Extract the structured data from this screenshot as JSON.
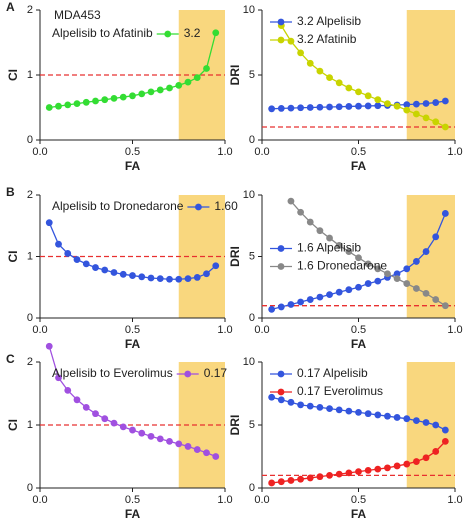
{
  "chart_data": [
    {
      "type": "line",
      "panel_label": "A",
      "title": "MDA453",
      "annotation": "Alpelisib to Afatinib",
      "xlabel": "FA",
      "ylabel": "CI",
      "x": [
        0.05,
        0.1,
        0.15,
        0.2,
        0.25,
        0.3,
        0.35,
        0.4,
        0.45,
        0.5,
        0.55,
        0.6,
        0.65,
        0.7,
        0.75,
        0.8,
        0.85,
        0.9,
        0.95
      ],
      "series": [
        {
          "name": "3.2",
          "color": "#33dd33",
          "values": [
            0.5,
            0.52,
            0.54,
            0.56,
            0.58,
            0.6,
            0.62,
            0.64,
            0.66,
            0.68,
            0.71,
            0.74,
            0.77,
            0.8,
            0.84,
            0.89,
            0.96,
            1.1,
            1.65
          ]
        }
      ],
      "xlim": [
        0,
        1
      ],
      "xticks": [
        {
          "value": 0,
          "label": "0.0"
        },
        0.5,
        {
          "value": 1,
          "label": "1.0"
        }
      ],
      "ylim": [
        0,
        2
      ],
      "yticks": [
        0,
        1,
        2
      ],
      "ref_line": 1,
      "shade": [
        0.75,
        1
      ],
      "legend_position": "upper left"
    },
    {
      "type": "line",
      "xlabel": "FA",
      "ylabel": "DRI",
      "x": [
        0.05,
        0.1,
        0.15,
        0.2,
        0.25,
        0.3,
        0.35,
        0.4,
        0.45,
        0.5,
        0.55,
        0.6,
        0.65,
        0.7,
        0.75,
        0.8,
        0.85,
        0.9,
        0.95
      ],
      "series": [
        {
          "name": "3.2 Alpelisib",
          "color": "#3355dd",
          "values": [
            2.4,
            2.43,
            2.45,
            2.48,
            2.5,
            2.52,
            2.54,
            2.56,
            2.58,
            2.6,
            2.62,
            2.64,
            2.66,
            2.69,
            2.72,
            2.76,
            2.81,
            2.88,
            3.0
          ]
        },
        {
          "name": "3.2 Afatinib",
          "color": "#c8d400",
          "values": [
            null,
            8.8,
            7.6,
            6.7,
            5.9,
            5.3,
            4.8,
            4.4,
            4.0,
            3.7,
            3.4,
            3.1,
            2.8,
            2.6,
            2.3,
            2.0,
            1.7,
            1.4,
            1.0
          ]
        }
      ],
      "xlim": [
        0,
        1
      ],
      "xticks": [
        {
          "value": 0,
          "label": "0.0"
        },
        0.5,
        {
          "value": 1,
          "label": "1.0"
        }
      ],
      "ylim": [
        0,
        10
      ],
      "yticks": [
        0,
        5,
        10
      ],
      "ref_line": 1,
      "shade": [
        0.75,
        1
      ],
      "legend_position": "upper left"
    },
    {
      "type": "line",
      "panel_label": "B",
      "annotation": "Alpelisib to Dronedarone",
      "xlabel": "FA",
      "ylabel": "CI",
      "x": [
        0.05,
        0.1,
        0.15,
        0.2,
        0.25,
        0.3,
        0.35,
        0.4,
        0.45,
        0.5,
        0.55,
        0.6,
        0.65,
        0.7,
        0.75,
        0.8,
        0.85,
        0.9,
        0.95
      ],
      "series": [
        {
          "name": "1.60",
          "color": "#3355dd",
          "values": [
            1.55,
            1.2,
            1.05,
            0.95,
            0.88,
            0.82,
            0.78,
            0.74,
            0.71,
            0.69,
            0.67,
            0.65,
            0.64,
            0.63,
            0.63,
            0.64,
            0.66,
            0.72,
            0.85
          ]
        }
      ],
      "xlim": [
        0,
        1
      ],
      "xticks": [
        {
          "value": 0,
          "label": "0.0"
        },
        0.5,
        {
          "value": 1,
          "label": "1.0"
        }
      ],
      "ylim": [
        0,
        2
      ],
      "yticks": [
        0,
        1,
        2
      ],
      "ref_line": 1,
      "shade": [
        0.75,
        1
      ],
      "legend_position": "upper left"
    },
    {
      "type": "line",
      "xlabel": "FA",
      "ylabel": "DRI",
      "x": [
        0.05,
        0.1,
        0.15,
        0.2,
        0.25,
        0.3,
        0.35,
        0.4,
        0.45,
        0.5,
        0.55,
        0.6,
        0.65,
        0.7,
        0.75,
        0.8,
        0.85,
        0.9,
        0.95
      ],
      "series": [
        {
          "name": "1.6 Alpelisib",
          "color": "#3355dd",
          "values": [
            0.7,
            0.9,
            1.1,
            1.3,
            1.5,
            1.7,
            1.9,
            2.1,
            2.3,
            2.5,
            2.8,
            3.0,
            3.3,
            3.6,
            4.0,
            4.6,
            5.4,
            6.6,
            8.5
          ]
        },
        {
          "name": "1.6 Dronedarone",
          "color": "#888888",
          "values": [
            null,
            null,
            9.5,
            8.6,
            7.8,
            7.1,
            6.5,
            5.9,
            5.4,
            4.9,
            4.4,
            4.0,
            3.6,
            3.2,
            2.8,
            2.4,
            2.0,
            1.5,
            1.0
          ]
        }
      ],
      "xlim": [
        0,
        1
      ],
      "xticks": [
        {
          "value": 0,
          "label": "0.0"
        },
        0.5,
        {
          "value": 1,
          "label": "1.0"
        }
      ],
      "ylim": [
        0,
        10
      ],
      "yticks": [
        0,
        5,
        10
      ],
      "ref_line": 1,
      "shade": [
        0.75,
        1
      ],
      "legend_position": "center left"
    },
    {
      "type": "line",
      "panel_label": "C",
      "annotation": "Alpelisib to Everolimus",
      "xlabel": "FA",
      "ylabel": "CI",
      "x": [
        0.05,
        0.1,
        0.15,
        0.2,
        0.25,
        0.3,
        0.35,
        0.4,
        0.45,
        0.5,
        0.55,
        0.6,
        0.65,
        0.7,
        0.75,
        0.8,
        0.85,
        0.9,
        0.95
      ],
      "series": [
        {
          "name": "0.17",
          "color": "#a050e0",
          "values": [
            2.25,
            1.75,
            1.55,
            1.4,
            1.28,
            1.18,
            1.1,
            1.03,
            0.97,
            0.92,
            0.87,
            0.82,
            0.78,
            0.74,
            0.7,
            0.66,
            0.61,
            0.56,
            0.5
          ]
        }
      ],
      "xlim": [
        0,
        1
      ],
      "xticks": [
        {
          "value": 0,
          "label": "0.0"
        },
        0.5,
        {
          "value": 1,
          "label": "1.0"
        }
      ],
      "ylim": [
        0,
        2
      ],
      "yticks": [
        0,
        1,
        2
      ],
      "ref_line": 1,
      "shade": [
        0.75,
        1
      ],
      "legend_position": "upper left"
    },
    {
      "type": "line",
      "xlabel": "FA",
      "ylabel": "DRI",
      "x": [
        0.05,
        0.1,
        0.15,
        0.2,
        0.25,
        0.3,
        0.35,
        0.4,
        0.45,
        0.5,
        0.55,
        0.6,
        0.65,
        0.7,
        0.75,
        0.8,
        0.85,
        0.9,
        0.95
      ],
      "series": [
        {
          "name": "0.17 Alpelisib",
          "color": "#3355dd",
          "values": [
            7.2,
            7.0,
            6.8,
            6.6,
            6.5,
            6.4,
            6.3,
            6.2,
            6.1,
            6.0,
            5.9,
            5.8,
            5.7,
            5.6,
            5.5,
            5.35,
            5.2,
            5.0,
            4.6
          ]
        },
        {
          "name": "0.17 Everolimus",
          "color": "#ee2222",
          "values": [
            0.4,
            0.5,
            0.6,
            0.7,
            0.8,
            0.9,
            1.0,
            1.1,
            1.2,
            1.3,
            1.4,
            1.5,
            1.6,
            1.75,
            1.9,
            2.1,
            2.4,
            2.9,
            3.7
          ]
        }
      ],
      "xlim": [
        0,
        1
      ],
      "xticks": [
        {
          "value": 0,
          "label": "0.0"
        },
        0.5,
        {
          "value": 1,
          "label": "1.0"
        }
      ],
      "ylim": [
        0,
        10
      ],
      "yticks": [
        0,
        5,
        10
      ],
      "ref_line": 1,
      "shade": [
        0.75,
        1
      ],
      "legend_position": "upper left"
    }
  ]
}
